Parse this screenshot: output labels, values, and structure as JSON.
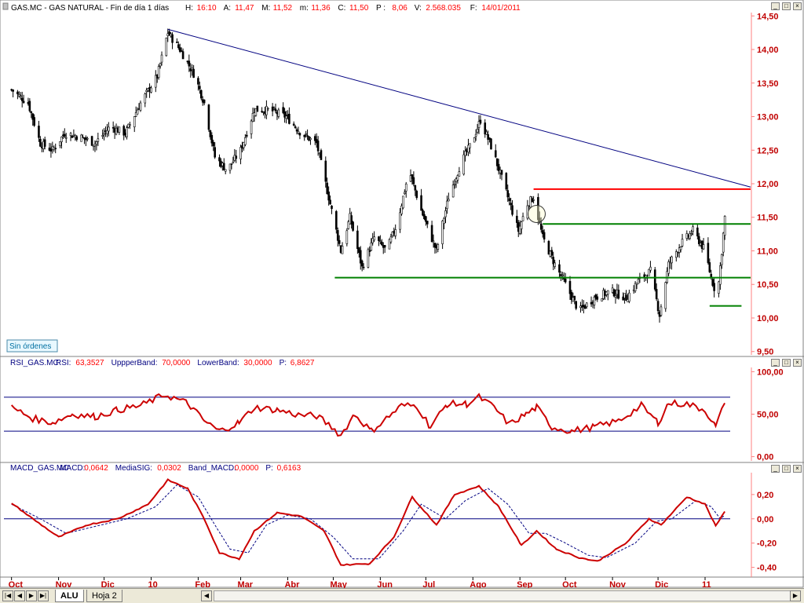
{
  "header": {
    "title": "GAS.MC - GAS NATURAL - Fin de día 1 días",
    "stats": [
      {
        "label": "H:",
        "value": "16:10"
      },
      {
        "label": "A:",
        "value": "11,47"
      },
      {
        "label": "M:",
        "value": "11,52"
      },
      {
        "label": "m:",
        "value": "11,36"
      },
      {
        "label": "C:",
        "value": "11,50"
      },
      {
        "label": "P :",
        "value": "8,06"
      },
      {
        "label": "V:",
        "value": "2.568.035"
      },
      {
        "label": "F:",
        "value": "14/01/2011"
      }
    ]
  },
  "orders_label": "Sin órdenes",
  "rsi": {
    "title": "RSI_GAS.MC",
    "stats": [
      {
        "label": "RSI:",
        "value": "63,3527"
      },
      {
        "label": "UppperBand:",
        "value": "70,0000"
      },
      {
        "label": "LowerBand:",
        "value": "30,0000"
      },
      {
        "label": "P:",
        "value": "6,8627"
      }
    ]
  },
  "macd": {
    "title": "MACD_GAS.MC",
    "stats": [
      {
        "label": "MACD:",
        "value": "0,0642"
      },
      {
        "label": "MediaSIG:",
        "value": "0,0302"
      },
      {
        "label": "Band_MACD:",
        "value": "0,0000"
      },
      {
        "label": "P:",
        "value": "0,6163"
      }
    ]
  },
  "x_axis": {
    "labels": [
      "Oct",
      "Nov",
      "Dic",
      "10",
      "Feb",
      "Mar",
      "Abr",
      "May",
      "Jun",
      "Jul",
      "Ago",
      "Sep",
      "Oct",
      "Nov",
      "Dic",
      "11"
    ]
  },
  "sheet_tabs": {
    "active": "ALU",
    "other": "Hoja 2"
  },
  "colors": {
    "header_text": "#ff0000",
    "title_text": "#000080",
    "axis_text": "#c00000",
    "candles": "#000000",
    "rsi_line": "#cc0000",
    "macd_line": "#cc0000",
    "signal_line": "#000080",
    "band": "#000080",
    "resistance": "#ff0000",
    "support": "#008000",
    "trendline": "#000080",
    "axis_line": "#ff8080"
  },
  "chart_data": [
    {
      "type": "candlestick",
      "title": "GAS.MC - GAS NATURAL",
      "x_ticks": [
        "Oct",
        "Nov",
        "Dic",
        "10",
        "Feb",
        "Mar",
        "Abr",
        "May",
        "Jun",
        "Jul",
        "Ago",
        "Sep",
        "Oct",
        "Nov",
        "Dic",
        "11"
      ],
      "y_ticks": [
        9.5,
        10.0,
        10.5,
        11.0,
        11.5,
        12.0,
        12.5,
        13.0,
        13.5,
        14.0,
        14.5
      ],
      "y_tick_labels": [
        "9,50",
        "10,00",
        "10,50",
        "11,00",
        "11,50",
        "12,00",
        "12,50",
        "13,00",
        "13,50",
        "14,00",
        "14,50"
      ],
      "ylim": [
        9.45,
        14.55
      ],
      "close_path": [
        {
          "d": "2009-10-01",
          "v": 13.4
        },
        {
          "d": "2009-10-12",
          "v": 13.2
        },
        {
          "d": "2009-10-20",
          "v": 12.6
        },
        {
          "d": "2009-10-28",
          "v": 12.5
        },
        {
          "d": "2009-11-05",
          "v": 12.75
        },
        {
          "d": "2009-11-15",
          "v": 12.7
        },
        {
          "d": "2009-11-25",
          "v": 12.6
        },
        {
          "d": "2009-12-05",
          "v": 12.85
        },
        {
          "d": "2009-12-15",
          "v": 12.75
        },
        {
          "d": "2009-12-25",
          "v": 13.2
        },
        {
          "d": "2010-01-05",
          "v": 13.6
        },
        {
          "d": "2010-01-12",
          "v": 14.25
        },
        {
          "d": "2010-01-20",
          "v": 14.0
        },
        {
          "d": "2010-01-30",
          "v": 13.6
        },
        {
          "d": "2010-02-05",
          "v": 13.2
        },
        {
          "d": "2010-02-12",
          "v": 12.4
        },
        {
          "d": "2010-02-20",
          "v": 12.2
        },
        {
          "d": "2010-03-01",
          "v": 12.5
        },
        {
          "d": "2010-03-10",
          "v": 13.1
        },
        {
          "d": "2010-03-20",
          "v": 13.1
        },
        {
          "d": "2010-03-31",
          "v": 13.0
        },
        {
          "d": "2010-04-10",
          "v": 12.75
        },
        {
          "d": "2010-04-20",
          "v": 12.6
        },
        {
          "d": "2010-04-28",
          "v": 11.8
        },
        {
          "d": "2010-05-06",
          "v": 11.0
        },
        {
          "d": "2010-05-12",
          "v": 11.5
        },
        {
          "d": "2010-05-20",
          "v": 10.75
        },
        {
          "d": "2010-05-28",
          "v": 11.2
        },
        {
          "d": "2010-06-05",
          "v": 11.0
        },
        {
          "d": "2010-06-12",
          "v": 11.4
        },
        {
          "d": "2010-06-20",
          "v": 12.2
        },
        {
          "d": "2010-06-28",
          "v": 11.6
        },
        {
          "d": "2010-07-08",
          "v": 11.0
        },
        {
          "d": "2010-07-16",
          "v": 11.8
        },
        {
          "d": "2010-07-24",
          "v": 12.3
        },
        {
          "d": "2010-07-31",
          "v": 12.6
        },
        {
          "d": "2010-08-06",
          "v": 12.95
        },
        {
          "d": "2010-08-14",
          "v": 12.5
        },
        {
          "d": "2010-08-24",
          "v": 11.8
        },
        {
          "d": "2010-08-31",
          "v": 11.3
        },
        {
          "d": "2010-09-06",
          "v": 11.7
        },
        {
          "d": "2010-09-10",
          "v": 11.8
        },
        {
          "d": "2010-09-16",
          "v": 11.2
        },
        {
          "d": "2010-09-24",
          "v": 10.8
        },
        {
          "d": "2010-10-01",
          "v": 10.5
        },
        {
          "d": "2010-10-10",
          "v": 10.1
        },
        {
          "d": "2010-10-20",
          "v": 10.3
        },
        {
          "d": "2010-10-31",
          "v": 10.4
        },
        {
          "d": "2010-11-10",
          "v": 10.3
        },
        {
          "d": "2010-11-18",
          "v": 10.55
        },
        {
          "d": "2010-11-26",
          "v": 10.7
        },
        {
          "d": "2010-12-02",
          "v": 10.05
        },
        {
          "d": "2010-12-08",
          "v": 10.8
        },
        {
          "d": "2010-12-16",
          "v": 11.1
        },
        {
          "d": "2010-12-24",
          "v": 11.3
        },
        {
          "d": "2011-01-01",
          "v": 11.0
        },
        {
          "d": "2011-01-05",
          "v": 10.6
        },
        {
          "d": "2011-01-09",
          "v": 10.3
        },
        {
          "d": "2011-01-12",
          "v": 11.0
        },
        {
          "d": "2011-01-14",
          "v": 11.5
        }
      ],
      "lines": [
        {
          "name": "downtrend",
          "points": [
            {
              "d": "2010-01-12",
              "v": 14.3
            },
            {
              "d": "2011-01-31",
              "v": 11.95
            }
          ]
        },
        {
          "name": "resistance",
          "level": 11.92,
          "from": "2010-09-10",
          "to": "2011-01-31"
        },
        {
          "name": "support-upper",
          "level": 11.4,
          "from": "2010-09-16",
          "to": "2011-01-31"
        },
        {
          "name": "support-lower",
          "level": 10.6,
          "from": "2010-05-02",
          "to": "2011-01-31"
        },
        {
          "name": "support-short",
          "level": 10.18,
          "from": "2011-01-04",
          "to": "2011-01-25"
        }
      ],
      "annotation": {
        "type": "circle",
        "d": "2010-09-12",
        "v": 11.55
      }
    },
    {
      "type": "line",
      "title": "RSI_GAS.MC",
      "y_ticks": [
        0,
        50,
        100
      ],
      "y_tick_labels": [
        "0,00",
        "50,00",
        "100,00"
      ],
      "ylim": [
        -5,
        105
      ],
      "bands": [
        70,
        30
      ],
      "series": [
        {
          "name": "RSI",
          "points": [
            {
              "d": "2009-10-01",
              "v": 58
            },
            {
              "d": "2009-10-15",
              "v": 45
            },
            {
              "d": "2009-10-28",
              "v": 40
            },
            {
              "d": "2009-11-10",
              "v": 50
            },
            {
              "d": "2009-11-25",
              "v": 47
            },
            {
              "d": "2009-12-10",
              "v": 55
            },
            {
              "d": "2009-12-25",
              "v": 60
            },
            {
              "d": "2010-01-10",
              "v": 73
            },
            {
              "d": "2010-01-25",
              "v": 63
            },
            {
              "d": "2010-02-05",
              "v": 42
            },
            {
              "d": "2010-02-15",
              "v": 30
            },
            {
              "d": "2010-02-28",
              "v": 40
            },
            {
              "d": "2010-03-10",
              "v": 58
            },
            {
              "d": "2010-03-25",
              "v": 55
            },
            {
              "d": "2010-04-08",
              "v": 49
            },
            {
              "d": "2010-04-20",
              "v": 48
            },
            {
              "d": "2010-04-30",
              "v": 35
            },
            {
              "d": "2010-05-06",
              "v": 25
            },
            {
              "d": "2010-05-15",
              "v": 50
            },
            {
              "d": "2010-05-26",
              "v": 30
            },
            {
              "d": "2010-06-05",
              "v": 45
            },
            {
              "d": "2010-06-15",
              "v": 60
            },
            {
              "d": "2010-06-25",
              "v": 60
            },
            {
              "d": "2010-07-04",
              "v": 35
            },
            {
              "d": "2010-07-15",
              "v": 62
            },
            {
              "d": "2010-07-28",
              "v": 62
            },
            {
              "d": "2010-08-05",
              "v": 70
            },
            {
              "d": "2010-08-15",
              "v": 58
            },
            {
              "d": "2010-08-25",
              "v": 38
            },
            {
              "d": "2010-09-05",
              "v": 50
            },
            {
              "d": "2010-09-12",
              "v": 58
            },
            {
              "d": "2010-09-22",
              "v": 35
            },
            {
              "d": "2010-10-05",
              "v": 30
            },
            {
              "d": "2010-10-20",
              "v": 35
            },
            {
              "d": "2010-11-05",
              "v": 42
            },
            {
              "d": "2010-11-20",
              "v": 60
            },
            {
              "d": "2010-12-01",
              "v": 40
            },
            {
              "d": "2010-12-08",
              "v": 63
            },
            {
              "d": "2010-12-20",
              "v": 62
            },
            {
              "d": "2011-01-01",
              "v": 55
            },
            {
              "d": "2011-01-08",
              "v": 35
            },
            {
              "d": "2011-01-14",
              "v": 63
            }
          ]
        }
      ]
    },
    {
      "type": "line",
      "title": "MACD_GAS.MC",
      "y_ticks": [
        -0.4,
        -0.2,
        0.0,
        0.2
      ],
      "y_tick_labels": [
        "-0,40",
        "-0,20",
        "0,00",
        "0,20"
      ],
      "ylim": [
        -0.48,
        0.38
      ],
      "zero_line": 0,
      "series": [
        {
          "name": "MACD",
          "points": [
            {
              "d": "2009-10-01",
              "v": 0.13
            },
            {
              "d": "2009-10-15",
              "v": 0.0
            },
            {
              "d": "2009-11-01",
              "v": -0.15
            },
            {
              "d": "2009-11-20",
              "v": -0.05
            },
            {
              "d": "2009-12-10",
              "v": 0.0
            },
            {
              "d": "2009-12-30",
              "v": 0.12
            },
            {
              "d": "2010-01-12",
              "v": 0.32
            },
            {
              "d": "2010-01-25",
              "v": 0.25
            },
            {
              "d": "2010-02-05",
              "v": 0.0
            },
            {
              "d": "2010-02-15",
              "v": -0.28
            },
            {
              "d": "2010-02-28",
              "v": -0.33
            },
            {
              "d": "2010-03-10",
              "v": -0.1
            },
            {
              "d": "2010-03-25",
              "v": 0.05
            },
            {
              "d": "2010-04-10",
              "v": 0.02
            },
            {
              "d": "2010-04-25",
              "v": -0.1
            },
            {
              "d": "2010-05-06",
              "v": -0.38
            },
            {
              "d": "2010-05-25",
              "v": -0.37
            },
            {
              "d": "2010-06-10",
              "v": -0.15
            },
            {
              "d": "2010-06-22",
              "v": 0.18
            },
            {
              "d": "2010-07-08",
              "v": -0.05
            },
            {
              "d": "2010-07-20",
              "v": 0.2
            },
            {
              "d": "2010-08-05",
              "v": 0.27
            },
            {
              "d": "2010-08-18",
              "v": 0.1
            },
            {
              "d": "2010-09-02",
              "v": -0.22
            },
            {
              "d": "2010-09-12",
              "v": -0.1
            },
            {
              "d": "2010-09-25",
              "v": -0.25
            },
            {
              "d": "2010-10-10",
              "v": -0.32
            },
            {
              "d": "2010-10-22",
              "v": -0.35
            },
            {
              "d": "2010-11-10",
              "v": -0.2
            },
            {
              "d": "2010-11-25",
              "v": 0.0
            },
            {
              "d": "2010-12-03",
              "v": -0.05
            },
            {
              "d": "2010-12-20",
              "v": 0.18
            },
            {
              "d": "2011-01-01",
              "v": 0.12
            },
            {
              "d": "2011-01-08",
              "v": -0.06
            },
            {
              "d": "2011-01-14",
              "v": 0.06
            }
          ]
        },
        {
          "name": "MediaSIG",
          "points": [
            {
              "d": "2009-10-01",
              "v": 0.12
            },
            {
              "d": "2009-10-20",
              "v": 0.0
            },
            {
              "d": "2009-11-06",
              "v": -0.12
            },
            {
              "d": "2009-11-26",
              "v": -0.06
            },
            {
              "d": "2009-12-16",
              "v": 0.0
            },
            {
              "d": "2010-01-04",
              "v": 0.1
            },
            {
              "d": "2010-01-18",
              "v": 0.28
            },
            {
              "d": "2010-02-01",
              "v": 0.18
            },
            {
              "d": "2010-02-12",
              "v": -0.05
            },
            {
              "d": "2010-02-22",
              "v": -0.25
            },
            {
              "d": "2010-03-06",
              "v": -0.28
            },
            {
              "d": "2010-03-18",
              "v": -0.05
            },
            {
              "d": "2010-04-01",
              "v": 0.03
            },
            {
              "d": "2010-04-16",
              "v": 0.0
            },
            {
              "d": "2010-05-01",
              "v": -0.15
            },
            {
              "d": "2010-05-14",
              "v": -0.33
            },
            {
              "d": "2010-05-31",
              "v": -0.33
            },
            {
              "d": "2010-06-16",
              "v": -0.1
            },
            {
              "d": "2010-06-28",
              "v": 0.12
            },
            {
              "d": "2010-07-14",
              "v": 0.0
            },
            {
              "d": "2010-07-27",
              "v": 0.15
            },
            {
              "d": "2010-08-11",
              "v": 0.25
            },
            {
              "d": "2010-08-24",
              "v": 0.12
            },
            {
              "d": "2010-09-07",
              "v": -0.12
            },
            {
              "d": "2010-09-18",
              "v": -0.12
            },
            {
              "d": "2010-10-01",
              "v": -0.2
            },
            {
              "d": "2010-10-16",
              "v": -0.3
            },
            {
              "d": "2010-10-28",
              "v": -0.32
            },
            {
              "d": "2010-11-16",
              "v": -0.2
            },
            {
              "d": "2010-11-30",
              "v": -0.02
            },
            {
              "d": "2010-12-10",
              "v": 0.0
            },
            {
              "d": "2010-12-26",
              "v": 0.15
            },
            {
              "d": "2011-01-05",
              "v": 0.1
            },
            {
              "d": "2011-01-11",
              "v": 0.0
            },
            {
              "d": "2011-01-14",
              "v": 0.03
            }
          ]
        }
      ]
    }
  ]
}
